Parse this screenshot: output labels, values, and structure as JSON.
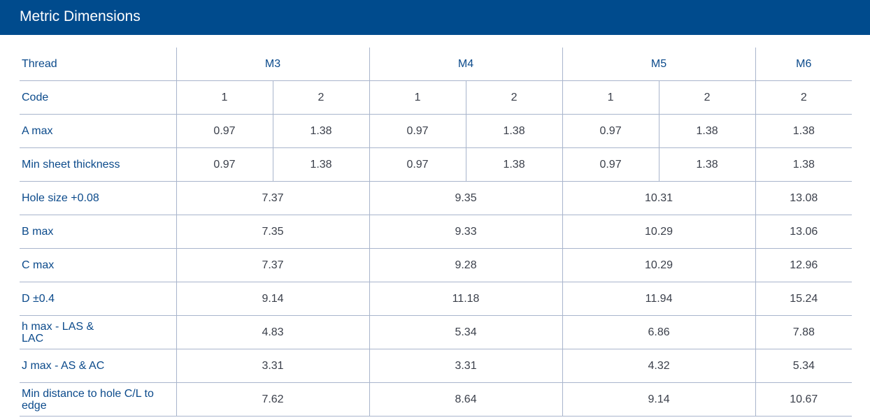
{
  "header": {
    "title": "Metric Dimensions"
  },
  "table": {
    "rows": [
      {
        "label": "Thread",
        "cells": [
          "M3",
          "M4",
          "M5",
          "M6"
        ]
      },
      {
        "label": "Code",
        "cells": [
          "1",
          "2",
          "1",
          "2",
          "1",
          "2",
          "2"
        ]
      },
      {
        "label": "A max",
        "cells": [
          "0.97",
          "1.38",
          "0.97",
          "1.38",
          "0.97",
          "1.38",
          "1.38"
        ]
      },
      {
        "label": "Min sheet thickness",
        "cells": [
          "0.97",
          "1.38",
          "0.97",
          "1.38",
          "0.97",
          "1.38",
          "1.38"
        ]
      },
      {
        "label": "Hole size +0.08",
        "cells": [
          "7.37",
          "9.35",
          "10.31",
          "13.08"
        ]
      },
      {
        "label": "B max",
        "cells": [
          "7.35",
          "9.33",
          "10.29",
          "13.06"
        ]
      },
      {
        "label": "C max",
        "cells": [
          "7.37",
          "9.28",
          "10.29",
          "12.96"
        ]
      },
      {
        "label": "D ±0.4",
        "cells": [
          "9.14",
          "11.18",
          "11.94",
          "15.24"
        ]
      },
      {
        "label": "h max - LAS & LAC",
        "cells": [
          "4.83",
          "5.34",
          "6.86",
          "7.88"
        ]
      },
      {
        "label": "J max - AS & AC",
        "cells": [
          "3.31",
          "3.31",
          "4.32",
          "5.34"
        ]
      },
      {
        "label": "Min distance to hole C/L to edge",
        "cells": [
          "7.62",
          "8.64",
          "9.14",
          "10.67"
        ]
      }
    ]
  }
}
